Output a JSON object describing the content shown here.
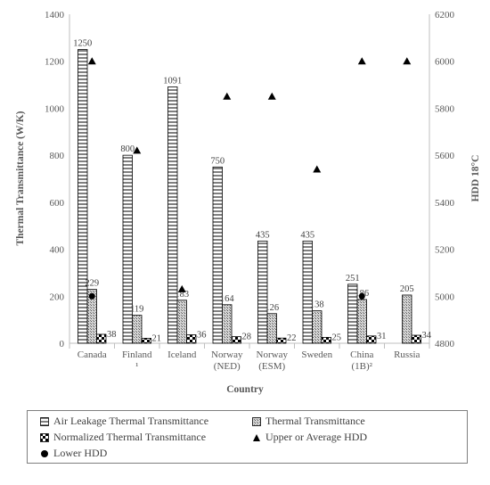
{
  "chart_data": {
    "type": "bar",
    "title": "",
    "xlabel": "Country",
    "ylabel": "Thermal Transmittance (W/K)",
    "y2label": "HDD 18°C",
    "ylim": [
      0,
      1400
    ],
    "yticks": [
      "0",
      "200",
      "400",
      "600",
      "800",
      "1000",
      "1200",
      "1400"
    ],
    "y2lim": [
      4800,
      6200
    ],
    "y2ticks": [
      "4800",
      "5000",
      "5200",
      "5400",
      "5600",
      "5800",
      "6000",
      "6200"
    ],
    "categories": [
      [
        "Canada"
      ],
      [
        "Finland",
        "¹"
      ],
      [
        "Iceland"
      ],
      [
        "Norway",
        "(NED)"
      ],
      [
        "Norway",
        "(ESM)"
      ],
      [
        "Sweden"
      ],
      [
        "China",
        "(1B)²"
      ],
      [
        "Russia"
      ]
    ],
    "series": [
      {
        "name": "Air Leakage Thermal Transmittance",
        "pattern": "hlines",
        "axis": "primary",
        "values": [
          1250,
          800,
          1091,
          750,
          435,
          435,
          251,
          null
        ],
        "labels": [
          "1250",
          "800",
          "1091",
          "750",
          "435",
          "435",
          "251",
          ""
        ]
      },
      {
        "name": "Thermal Transmittance",
        "pattern": "dots",
        "axis": "primary",
        "values": [
          229,
          119,
          183,
          164,
          126,
          138,
          186,
          205
        ],
        "labels": [
          "229",
          "119",
          "183",
          "164",
          "126",
          "138",
          "186",
          "205"
        ]
      },
      {
        "name": "Normalized Thermal Transmittance",
        "pattern": "checker",
        "axis": "primary",
        "values": [
          38,
          21,
          36,
          28,
          22,
          25,
          31,
          34
        ],
        "labels": [
          "38",
          "21",
          "36",
          "28",
          "22",
          "25",
          "31",
          "34"
        ]
      },
      {
        "name": "Upper or Average HDD",
        "marker": "triangle",
        "axis": "secondary",
        "values": [
          6000,
          5620,
          5030,
          5850,
          5850,
          5540,
          6000,
          6000
        ]
      },
      {
        "name": "Lower HDD",
        "marker": "circle",
        "axis": "secondary",
        "values": [
          5000,
          null,
          null,
          null,
          null,
          null,
          5000,
          null
        ]
      }
    ],
    "legend": {
      "position": "bottom"
    },
    "grid": false
  }
}
